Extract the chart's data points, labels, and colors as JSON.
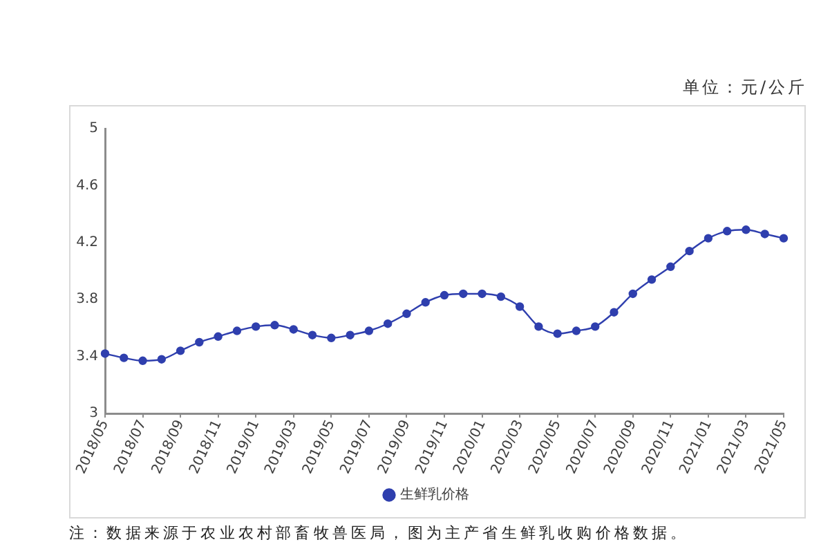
{
  "chart_data": {
    "type": "line",
    "categories": [
      "2018/05",
      null,
      "2018/07",
      null,
      "2018/09",
      null,
      "2018/11",
      null,
      "2019/01",
      null,
      "2019/03",
      null,
      "2019/05",
      null,
      "2019/07",
      null,
      "2019/09",
      null,
      "2019/11",
      null,
      "2020/01",
      null,
      "2020/03",
      null,
      "2020/05",
      null,
      "2020/07",
      null,
      "2020/09",
      null,
      "2020/11",
      null,
      "2021/01",
      null,
      "2021/03",
      null,
      "2021/05"
    ],
    "series": [
      {
        "name": "生鲜乳价格",
        "color": "#2f3fae",
        "values": [
          3.42,
          3.39,
          3.37,
          3.38,
          3.44,
          3.5,
          3.54,
          3.58,
          3.61,
          3.62,
          3.59,
          3.55,
          3.53,
          3.55,
          3.58,
          3.63,
          3.7,
          3.78,
          3.83,
          3.84,
          3.84,
          3.82,
          3.75,
          3.61,
          3.56,
          3.58,
          3.61,
          3.71,
          3.84,
          3.94,
          4.03,
          4.14,
          4.23,
          4.28,
          4.29,
          4.26,
          4.23
        ]
      }
    ],
    "ylim": [
      3,
      5
    ],
    "yticks": [
      3,
      3.4,
      3.8,
      4.2,
      4.6,
      5
    ],
    "grid": false,
    "legend": "bottom",
    "marker": "circle",
    "line_style": "solid",
    "annotations": [
      "单位：元/公斤",
      "注：数据来源于农业农村部畜牧兽医局，图为主产省生鲜乳收购价格数据。"
    ]
  }
}
